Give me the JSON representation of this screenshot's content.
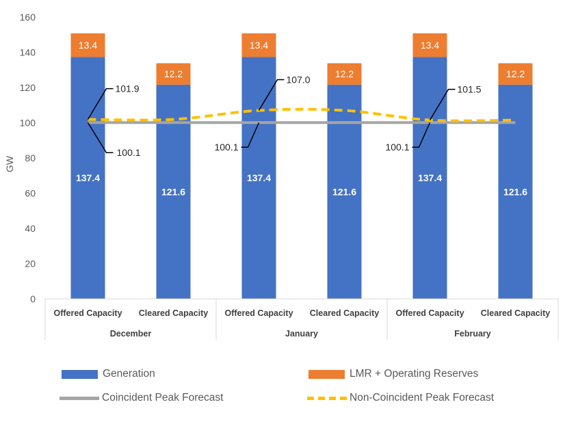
{
  "chart_data": {
    "type": "bar",
    "stacked": true,
    "groups": [
      "December",
      "January",
      "February"
    ],
    "categories": [
      "Offered Capacity",
      "Cleared Capacity",
      "Offered Capacity",
      "Cleared Capacity",
      "Offered Capacity",
      "Cleared Capacity"
    ],
    "series": [
      {
        "name": "Generation",
        "values": [
          137.4,
          121.6,
          137.4,
          121.6,
          137.4,
          121.6
        ]
      },
      {
        "name": "LMR + Operating Reserves",
        "values": [
          13.4,
          12.2,
          13.4,
          12.2,
          13.4,
          12.2
        ]
      }
    ],
    "lines": [
      {
        "name": "Coincident Peak Forecast",
        "values": [
          100.1,
          100.1,
          100.1,
          100.1,
          100.1,
          100.1
        ]
      },
      {
        "name": "Non-Coincident Peak Forecast",
        "values": [
          101.9,
          101.9,
          107.0,
          107.0,
          101.5,
          101.5
        ]
      }
    ],
    "annotations": [
      "101.9",
      "100.1",
      "107.0",
      "100.1",
      "101.5",
      "100.1"
    ],
    "ylabel": "GW",
    "ylim": [
      0,
      160
    ],
    "yticks": [
      0,
      20,
      40,
      60,
      80,
      100,
      120,
      140,
      160
    ],
    "colors": {
      "Generation": "#4472C4",
      "LMR + Operating Reserves": "#ED7D31",
      "Coincident Peak Forecast": "#A5A5A5",
      "Non-Coincident Peak Forecast": "#FFC000"
    },
    "legend": "bottom"
  }
}
